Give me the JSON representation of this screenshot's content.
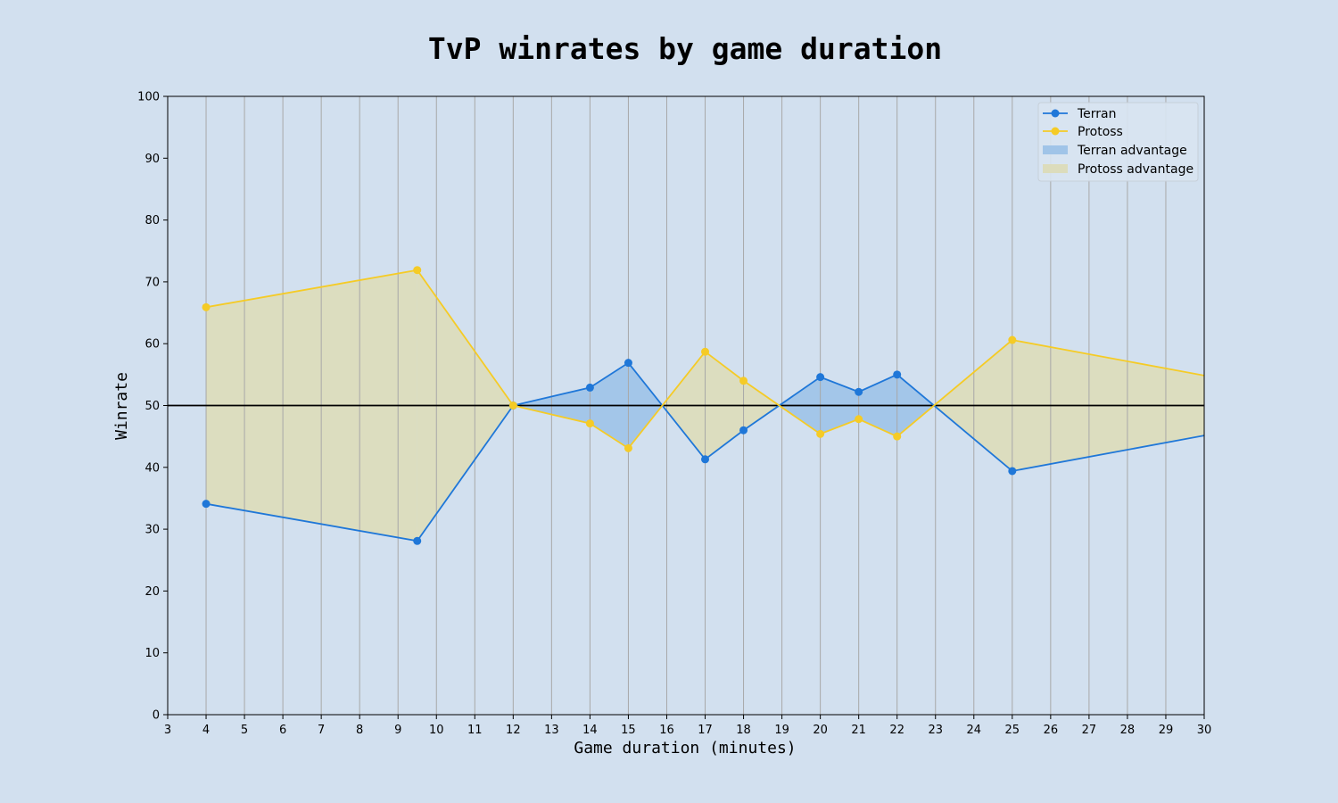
{
  "chart_data": {
    "type": "line",
    "title": "TvP winrates by game duration",
    "xlabel": "Game duration (minutes)",
    "ylabel": "Winrate",
    "xlim": [
      3,
      30
    ],
    "ylim": [
      0,
      100
    ],
    "xticks": [
      3,
      4,
      5,
      6,
      7,
      8,
      9,
      10,
      11,
      12,
      13,
      14,
      15,
      16,
      17,
      18,
      19,
      20,
      21,
      22,
      23,
      24,
      25,
      26,
      27,
      28,
      29,
      30
    ],
    "yticks": [
      0,
      10,
      20,
      30,
      40,
      50,
      60,
      70,
      80,
      90,
      100
    ],
    "grid": "vertical",
    "reference_line": 50,
    "legend_position": "top-right",
    "x": [
      4,
      9.5,
      12,
      14,
      15,
      17,
      18,
      20,
      21,
      22,
      25,
      31
    ],
    "series": [
      {
        "name": "Terran",
        "color": "#1f77d8",
        "values": [
          34.1,
          28.1,
          50.0,
          52.9,
          56.9,
          41.3,
          46.0,
          54.6,
          52.2,
          55.0,
          39.4,
          46.3
        ]
      },
      {
        "name": "Protoss",
        "color": "#f5cb26",
        "values": [
          65.9,
          71.9,
          50.0,
          47.1,
          43.1,
          58.7,
          54.0,
          45.4,
          47.8,
          45.0,
          60.6,
          53.7
        ]
      }
    ],
    "fills": [
      {
        "name": "Terran advantage",
        "color": "#a0c4e8"
      },
      {
        "name": "Protoss advantage",
        "color": "#dcdcbc"
      }
    ]
  }
}
